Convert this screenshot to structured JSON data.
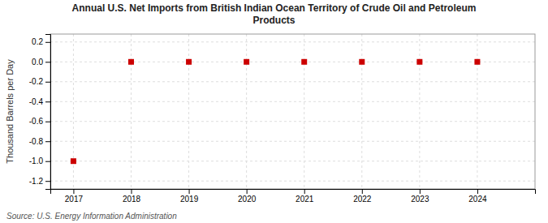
{
  "chart_data": {
    "type": "scatter",
    "title": "Annual U.S. Net Imports from British Indian Ocean Territory of Crude Oil and Petroleum\nProducts",
    "y_label": "Thousand Barrels per Day",
    "annotations": [
      "Source: U.S. Energy Information Administration"
    ],
    "x": [
      2017,
      2018,
      2019,
      2020,
      2021,
      2022,
      2023,
      2024
    ],
    "values": [
      -1.0,
      0.0,
      0.0,
      0.0,
      0.0,
      0.0,
      0.0,
      0.0
    ],
    "color": "#cc0000",
    "marker": "square",
    "xlim": [
      2016.6,
      2025.0
    ],
    "xticks": [
      2017,
      2018,
      2019,
      2020,
      2021,
      2022,
      2023,
      2024
    ],
    "ylim": [
      -1.28,
      0.28
    ],
    "yticks": [
      0.2,
      {
        "value": 0.0,
        "label": "0.0"
      },
      -0.2,
      -0.4,
      -0.6,
      -0.8,
      {
        "value": -1.0,
        "label": "-1.0"
      },
      -1.2
    ],
    "grid": true
  }
}
